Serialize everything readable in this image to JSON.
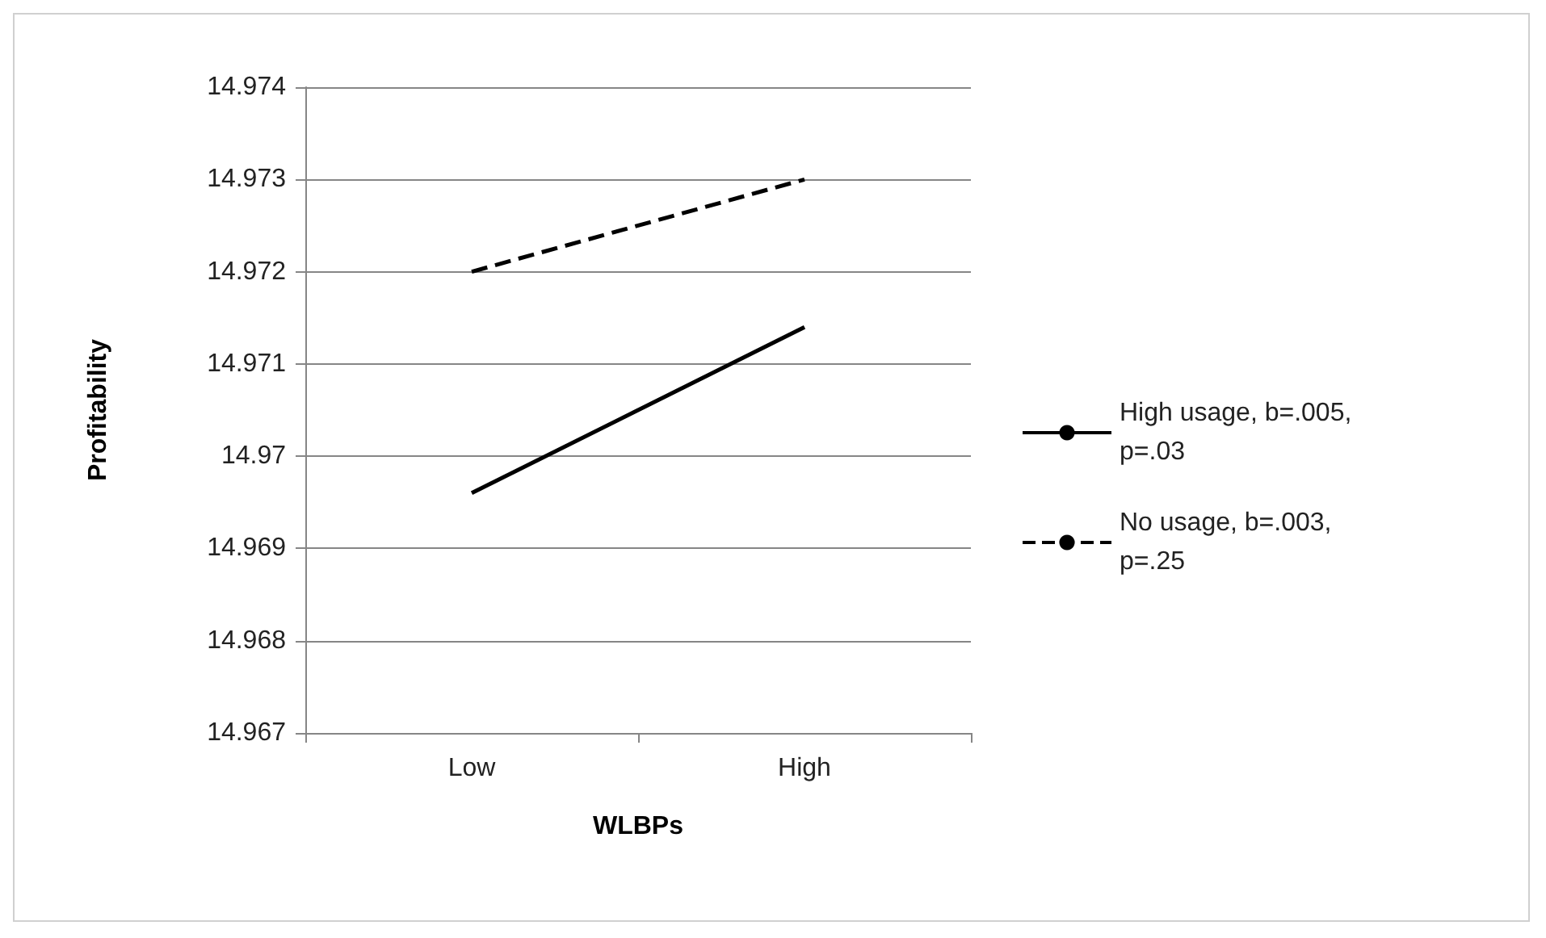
{
  "chart_data": {
    "type": "line",
    "xlabel": "WLBPs",
    "ylabel": "Profitability",
    "categories": [
      "Low",
      "High"
    ],
    "series": [
      {
        "name": "High usage, b=.005, p=.03",
        "color": "#000000",
        "line_style": "solid",
        "values": [
          14.9696,
          14.9714
        ]
      },
      {
        "name": "No usage, b=.003, p=.25",
        "color": "#000000",
        "line_style": "dashed",
        "values": [
          14.972,
          14.973
        ]
      }
    ],
    "ylim": [
      14.967,
      14.974
    ],
    "yticks": [
      14.967,
      14.968,
      14.969,
      14.97,
      14.971,
      14.972,
      14.973,
      14.974
    ],
    "grid": "y",
    "legend": "right",
    "marker": "none"
  }
}
